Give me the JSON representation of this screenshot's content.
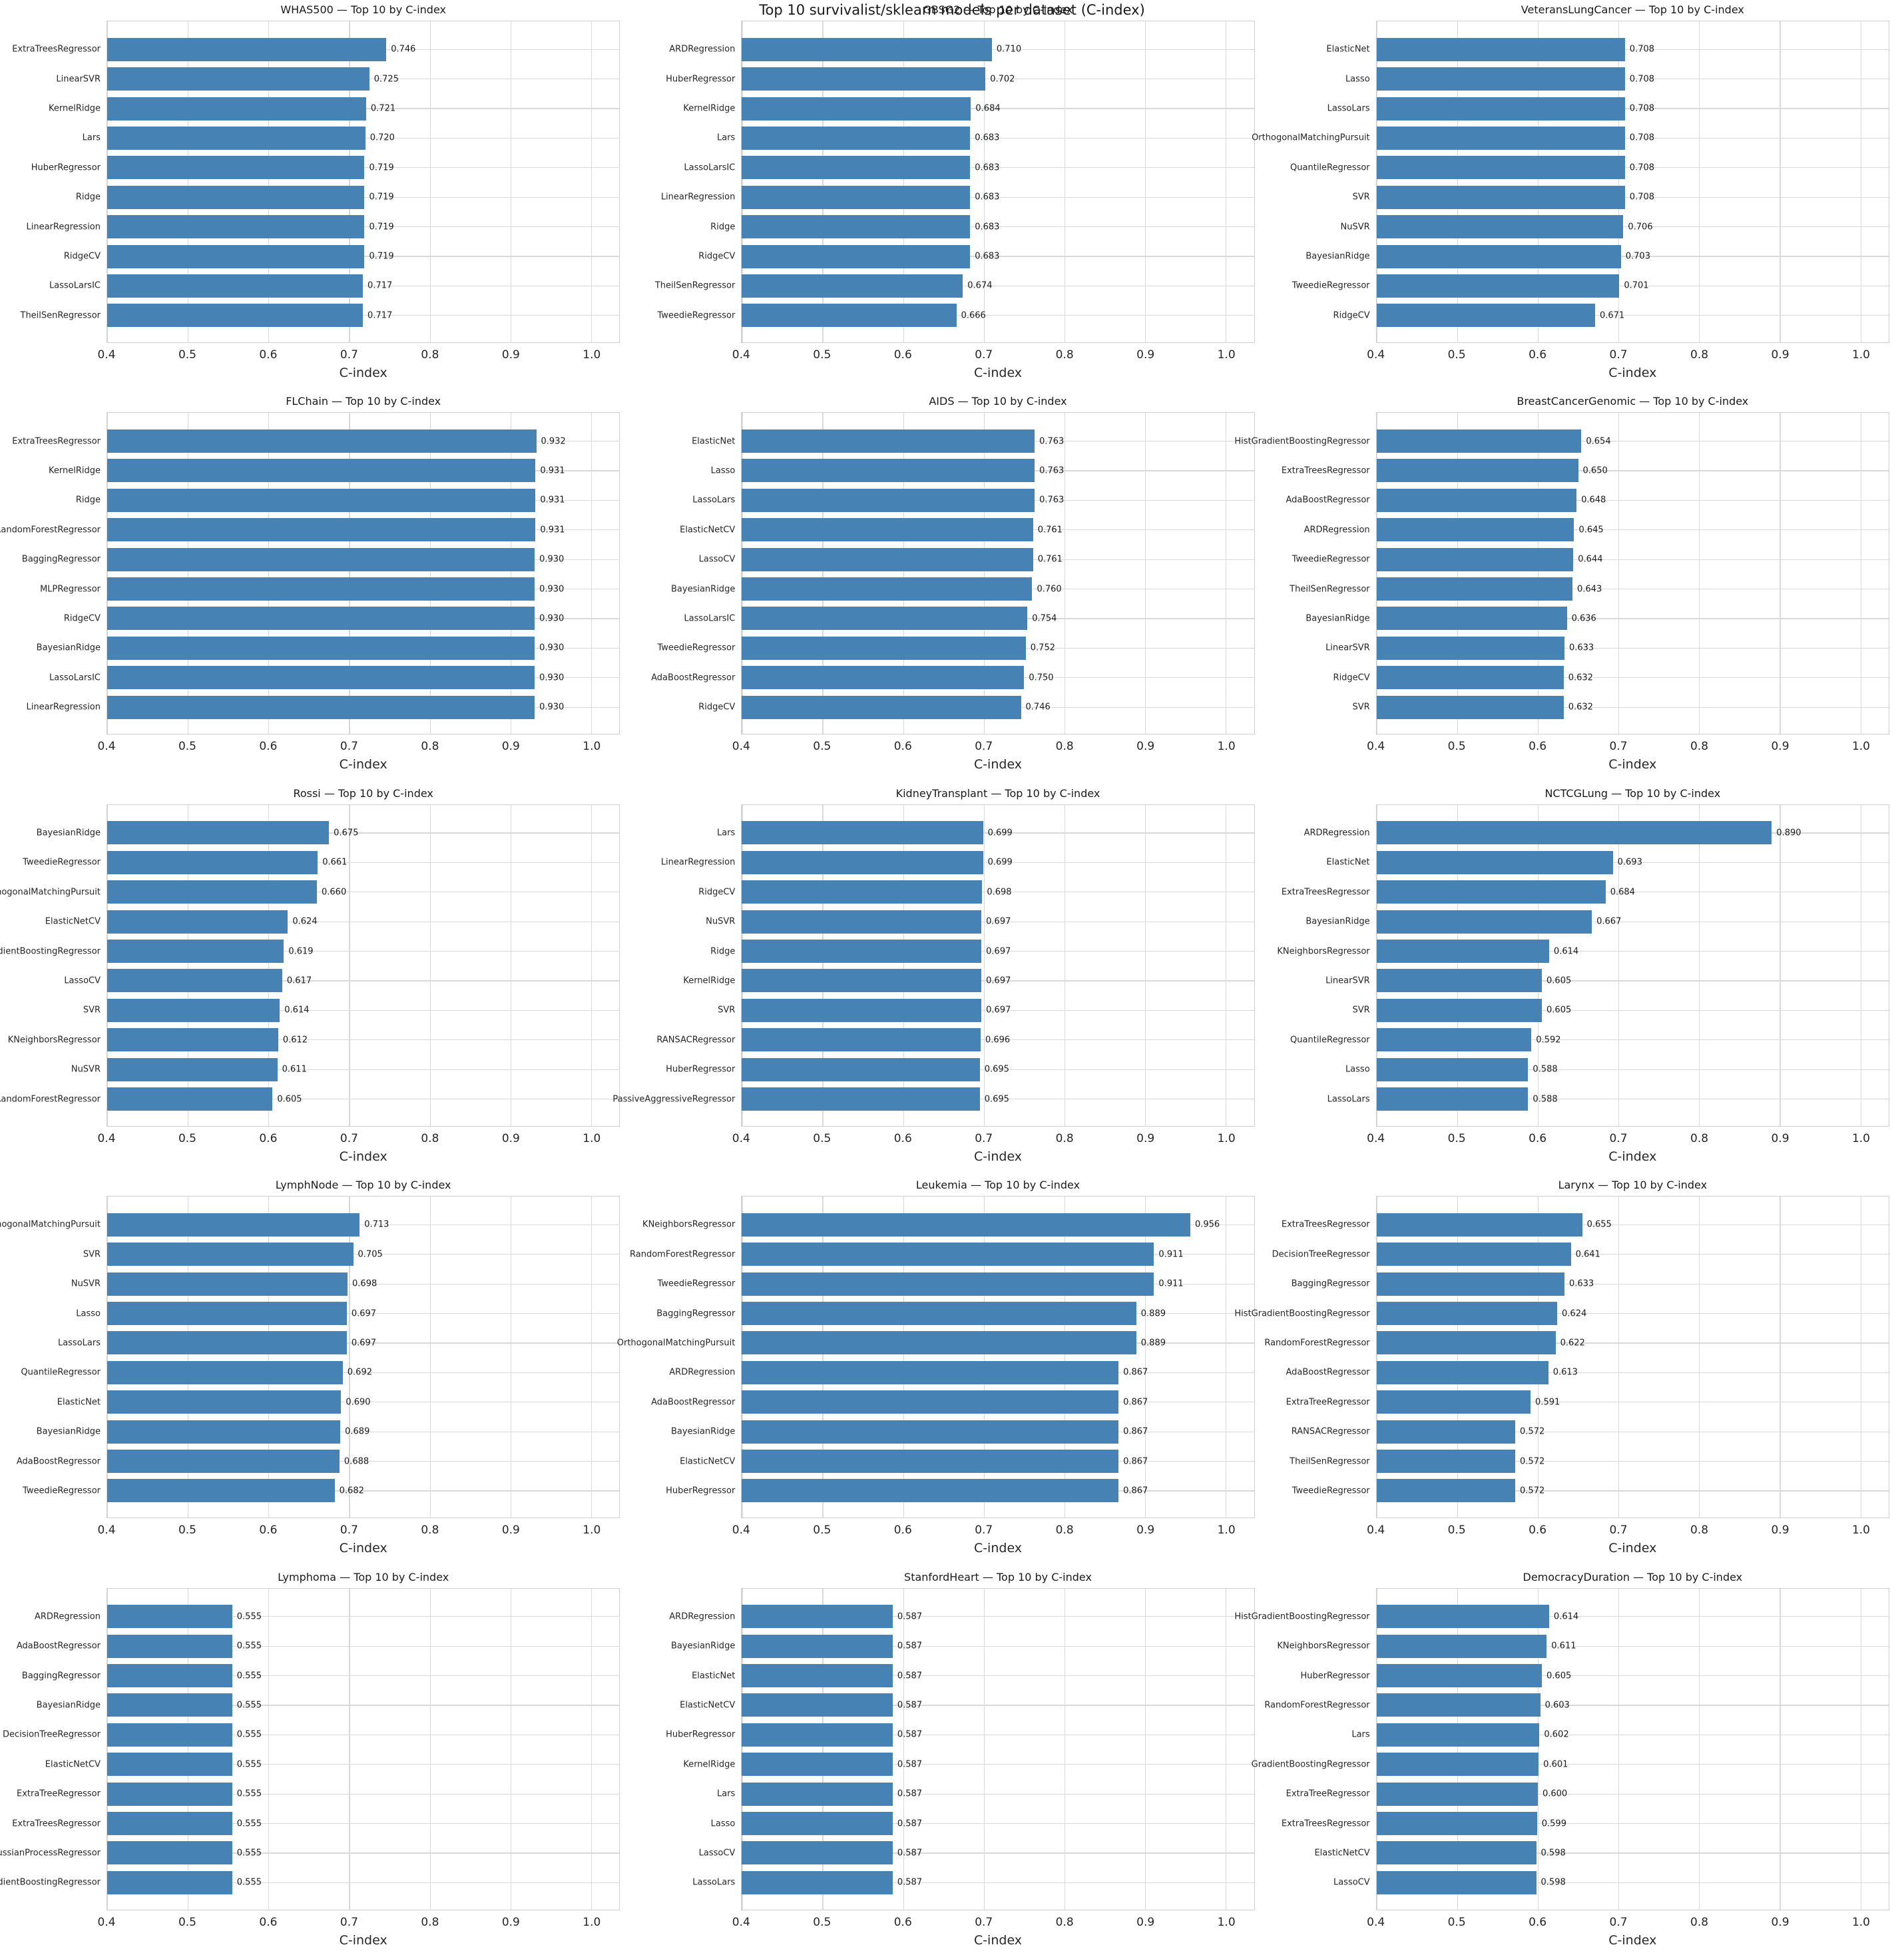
{
  "figure": {
    "suptitle": "Top 10 survivalist/sklearn models per dataset (C-index)",
    "bar_color": "#4682b4",
    "grid_color": "#d9d9d9",
    "spine_color": "#cfcfcf",
    "text_color": "#262626",
    "layout": "5 rows x 3 columns of horizontal bar charts"
  },
  "chart_data": [
    {
      "type": "bar",
      "dataset": "WHAS500",
      "title": "WHAS500 — Top 10 by C-index",
      "xlabel": "C-index",
      "orientation": "horizontal",
      "grid": true,
      "xlim": [
        0.4,
        1.035
      ],
      "xticks": [
        0.4,
        0.5,
        0.6,
        0.7,
        0.8,
        0.9,
        1.0
      ],
      "categories": [
        "ExtraTreesRegressor",
        "LinearSVR",
        "KernelRidge",
        "Lars",
        "HuberRegressor",
        "Ridge",
        "LinearRegression",
        "RidgeCV",
        "LassoLarsIC",
        "TheilSenRegressor"
      ],
      "values": [
        0.746,
        0.725,
        0.721,
        0.72,
        0.719,
        0.719,
        0.719,
        0.719,
        0.717,
        0.717
      ]
    },
    {
      "type": "bar",
      "dataset": "GBSG2",
      "title": "GBSG2 — Top 10 by C-index",
      "xlabel": "C-index",
      "orientation": "horizontal",
      "grid": true,
      "xlim": [
        0.4,
        1.035
      ],
      "xticks": [
        0.4,
        0.5,
        0.6,
        0.7,
        0.8,
        0.9,
        1.0
      ],
      "categories": [
        "ARDRegression",
        "HuberRegressor",
        "KernelRidge",
        "Lars",
        "LassoLarsIC",
        "LinearRegression",
        "Ridge",
        "RidgeCV",
        "TheilSenRegressor",
        "TweedieRegressor"
      ],
      "values": [
        0.71,
        0.702,
        0.684,
        0.683,
        0.683,
        0.683,
        0.683,
        0.683,
        0.674,
        0.666
      ]
    },
    {
      "type": "bar",
      "dataset": "VeteransLungCancer",
      "title": "VeteransLungCancer — Top 10 by C-index",
      "xlabel": "C-index",
      "orientation": "horizontal",
      "grid": true,
      "xlim": [
        0.4,
        1.035
      ],
      "xticks": [
        0.4,
        0.5,
        0.6,
        0.7,
        0.8,
        0.9,
        1.0
      ],
      "categories": [
        "ElasticNet",
        "Lasso",
        "LassoLars",
        "OrthogonalMatchingPursuit",
        "QuantileRegressor",
        "SVR",
        "NuSVR",
        "BayesianRidge",
        "TweedieRegressor",
        "RidgeCV"
      ],
      "values": [
        0.708,
        0.708,
        0.708,
        0.708,
        0.708,
        0.708,
        0.706,
        0.703,
        0.701,
        0.671
      ]
    },
    {
      "type": "bar",
      "dataset": "FLChain",
      "title": "FLChain — Top 10 by C-index",
      "xlabel": "C-index",
      "orientation": "horizontal",
      "grid": true,
      "xlim": [
        0.4,
        1.035
      ],
      "xticks": [
        0.4,
        0.5,
        0.6,
        0.7,
        0.8,
        0.9,
        1.0
      ],
      "categories": [
        "ExtraTreesRegressor",
        "KernelRidge",
        "Ridge",
        "RandomForestRegressor",
        "BaggingRegressor",
        "MLPRegressor",
        "RidgeCV",
        "BayesianRidge",
        "LassoLarsIC",
        "LinearRegression"
      ],
      "values": [
        0.932,
        0.931,
        0.931,
        0.931,
        0.93,
        0.93,
        0.93,
        0.93,
        0.93,
        0.93
      ]
    },
    {
      "type": "bar",
      "dataset": "AIDS",
      "title": "AIDS — Top 10 by C-index",
      "xlabel": "C-index",
      "orientation": "horizontal",
      "grid": true,
      "xlim": [
        0.4,
        1.035
      ],
      "xticks": [
        0.4,
        0.5,
        0.6,
        0.7,
        0.8,
        0.9,
        1.0
      ],
      "categories": [
        "ElasticNet",
        "Lasso",
        "LassoLars",
        "ElasticNetCV",
        "LassoCV",
        "BayesianRidge",
        "LassoLarsIC",
        "TweedieRegressor",
        "AdaBoostRegressor",
        "RidgeCV"
      ],
      "values": [
        0.763,
        0.763,
        0.763,
        0.761,
        0.761,
        0.76,
        0.754,
        0.752,
        0.75,
        0.746
      ]
    },
    {
      "type": "bar",
      "dataset": "BreastCancerGenomic",
      "title": "BreastCancerGenomic — Top 10 by C-index",
      "xlabel": "C-index",
      "orientation": "horizontal",
      "grid": true,
      "xlim": [
        0.4,
        1.035
      ],
      "xticks": [
        0.4,
        0.5,
        0.6,
        0.7,
        0.8,
        0.9,
        1.0
      ],
      "categories": [
        "HistGradientBoostingRegressor",
        "ExtraTreesRegressor",
        "AdaBoostRegressor",
        "ARDRegression",
        "TweedieRegressor",
        "TheilSenRegressor",
        "BayesianRidge",
        "LinearSVR",
        "RidgeCV",
        "SVR"
      ],
      "values": [
        0.654,
        0.65,
        0.648,
        0.645,
        0.644,
        0.643,
        0.636,
        0.633,
        0.632,
        0.632
      ]
    },
    {
      "type": "bar",
      "dataset": "Rossi",
      "title": "Rossi — Top 10 by C-index",
      "xlabel": "C-index",
      "orientation": "horizontal",
      "grid": true,
      "xlim": [
        0.4,
        1.035
      ],
      "xticks": [
        0.4,
        0.5,
        0.6,
        0.7,
        0.8,
        0.9,
        1.0
      ],
      "categories": [
        "BayesianRidge",
        "TweedieRegressor",
        "OrthogonalMatchingPursuit",
        "ElasticNetCV",
        "GradientBoostingRegressor",
        "LassoCV",
        "SVR",
        "KNeighborsRegressor",
        "NuSVR",
        "RandomForestRegressor"
      ],
      "values": [
        0.675,
        0.661,
        0.66,
        0.624,
        0.619,
        0.617,
        0.614,
        0.612,
        0.611,
        0.605
      ]
    },
    {
      "type": "bar",
      "dataset": "KidneyTransplant",
      "title": "KidneyTransplant — Top 10 by C-index",
      "xlabel": "C-index",
      "orientation": "horizontal",
      "grid": true,
      "xlim": [
        0.4,
        1.035
      ],
      "xticks": [
        0.4,
        0.5,
        0.6,
        0.7,
        0.8,
        0.9,
        1.0
      ],
      "categories": [
        "Lars",
        "LinearRegression",
        "RidgeCV",
        "NuSVR",
        "Ridge",
        "KernelRidge",
        "SVR",
        "RANSACRegressor",
        "HuberRegressor",
        "PassiveAggressiveRegressor"
      ],
      "values": [
        0.699,
        0.699,
        0.698,
        0.697,
        0.697,
        0.697,
        0.697,
        0.696,
        0.695,
        0.695
      ]
    },
    {
      "type": "bar",
      "dataset": "NCTCGLung",
      "title": "NCTCGLung — Top 10 by C-index",
      "xlabel": "C-index",
      "orientation": "horizontal",
      "grid": true,
      "xlim": [
        0.4,
        1.035
      ],
      "xticks": [
        0.4,
        0.5,
        0.6,
        0.7,
        0.8,
        0.9,
        1.0
      ],
      "categories": [
        "ARDRegression",
        "ElasticNet",
        "ExtraTreesRegressor",
        "BayesianRidge",
        "KNeighborsRegressor",
        "LinearSVR",
        "SVR",
        "QuantileRegressor",
        "Lasso",
        "LassoLars"
      ],
      "values": [
        0.89,
        0.693,
        0.684,
        0.667,
        0.614,
        0.605,
        0.605,
        0.592,
        0.588,
        0.588
      ]
    },
    {
      "type": "bar",
      "dataset": "LymphNode",
      "title": "LymphNode — Top 10 by C-index",
      "xlabel": "C-index",
      "orientation": "horizontal",
      "grid": true,
      "xlim": [
        0.4,
        1.035
      ],
      "xticks": [
        0.4,
        0.5,
        0.6,
        0.7,
        0.8,
        0.9,
        1.0
      ],
      "categories": [
        "OrthogonalMatchingPursuit",
        "SVR",
        "NuSVR",
        "Lasso",
        "LassoLars",
        "QuantileRegressor",
        "ElasticNet",
        "BayesianRidge",
        "AdaBoostRegressor",
        "TweedieRegressor"
      ],
      "values": [
        0.713,
        0.705,
        0.698,
        0.697,
        0.697,
        0.692,
        0.69,
        0.689,
        0.688,
        0.682
      ]
    },
    {
      "type": "bar",
      "dataset": "Leukemia",
      "title": "Leukemia — Top 10 by C-index",
      "xlabel": "C-index",
      "orientation": "horizontal",
      "grid": true,
      "xlim": [
        0.4,
        1.035
      ],
      "xticks": [
        0.4,
        0.5,
        0.6,
        0.7,
        0.8,
        0.9,
        1.0
      ],
      "categories": [
        "KNeighborsRegressor",
        "RandomForestRegressor",
        "TweedieRegressor",
        "BaggingRegressor",
        "OrthogonalMatchingPursuit",
        "ARDRegression",
        "AdaBoostRegressor",
        "BayesianRidge",
        "ElasticNetCV",
        "HuberRegressor"
      ],
      "values": [
        0.956,
        0.911,
        0.911,
        0.889,
        0.889,
        0.867,
        0.867,
        0.867,
        0.867,
        0.867
      ]
    },
    {
      "type": "bar",
      "dataset": "Larynx",
      "title": "Larynx — Top 10 by C-index",
      "xlabel": "C-index",
      "orientation": "horizontal",
      "grid": true,
      "xlim": [
        0.4,
        1.035
      ],
      "xticks": [
        0.4,
        0.5,
        0.6,
        0.7,
        0.8,
        0.9,
        1.0
      ],
      "categories": [
        "ExtraTreesRegressor",
        "DecisionTreeRegressor",
        "BaggingRegressor",
        "HistGradientBoostingRegressor",
        "RandomForestRegressor",
        "AdaBoostRegressor",
        "ExtraTreeRegressor",
        "RANSACRegressor",
        "TheilSenRegressor",
        "TweedieRegressor"
      ],
      "values": [
        0.655,
        0.641,
        0.633,
        0.624,
        0.622,
        0.613,
        0.591,
        0.572,
        0.572,
        0.572
      ]
    },
    {
      "type": "bar",
      "dataset": "Lymphoma",
      "title": "Lymphoma — Top 10 by C-index",
      "xlabel": "C-index",
      "orientation": "horizontal",
      "grid": true,
      "xlim": [
        0.4,
        1.035
      ],
      "xticks": [
        0.4,
        0.5,
        0.6,
        0.7,
        0.8,
        0.9,
        1.0
      ],
      "categories": [
        "ARDRegression",
        "AdaBoostRegressor",
        "BaggingRegressor",
        "BayesianRidge",
        "DecisionTreeRegressor",
        "ElasticNetCV",
        "ExtraTreeRegressor",
        "ExtraTreesRegressor",
        "GaussianProcessRegressor",
        "GradientBoostingRegressor"
      ],
      "values": [
        0.555,
        0.555,
        0.555,
        0.555,
        0.555,
        0.555,
        0.555,
        0.555,
        0.555,
        0.555
      ]
    },
    {
      "type": "bar",
      "dataset": "StanfordHeart",
      "title": "StanfordHeart — Top 10 by C-index",
      "xlabel": "C-index",
      "orientation": "horizontal",
      "grid": true,
      "xlim": [
        0.4,
        1.035
      ],
      "xticks": [
        0.4,
        0.5,
        0.6,
        0.7,
        0.8,
        0.9,
        1.0
      ],
      "categories": [
        "ARDRegression",
        "BayesianRidge",
        "ElasticNet",
        "ElasticNetCV",
        "HuberRegressor",
        "KernelRidge",
        "Lars",
        "Lasso",
        "LassoCV",
        "LassoLars"
      ],
      "values": [
        0.587,
        0.587,
        0.587,
        0.587,
        0.587,
        0.587,
        0.587,
        0.587,
        0.587,
        0.587
      ]
    },
    {
      "type": "bar",
      "dataset": "DemocracyDuration",
      "title": "DemocracyDuration — Top 10 by C-index",
      "xlabel": "C-index",
      "orientation": "horizontal",
      "grid": true,
      "xlim": [
        0.4,
        1.035
      ],
      "xticks": [
        0.4,
        0.5,
        0.6,
        0.7,
        0.8,
        0.9,
        1.0
      ],
      "categories": [
        "HistGradientBoostingRegressor",
        "KNeighborsRegressor",
        "HuberRegressor",
        "RandomForestRegressor",
        "Lars",
        "GradientBoostingRegressor",
        "ExtraTreeRegressor",
        "ExtraTreesRegressor",
        "ElasticNetCV",
        "LassoCV"
      ],
      "values": [
        0.614,
        0.611,
        0.605,
        0.603,
        0.602,
        0.601,
        0.6,
        0.599,
        0.598,
        0.598
      ]
    }
  ]
}
